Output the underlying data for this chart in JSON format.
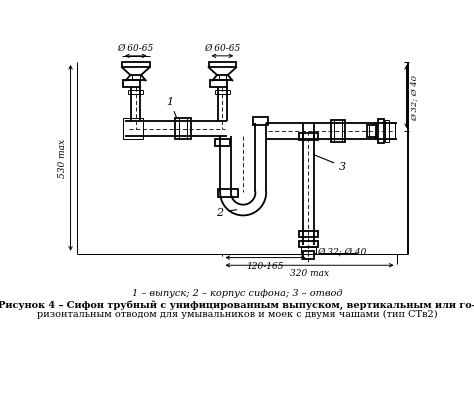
{
  "bg_color": "#ffffff",
  "line_color": "#000000",
  "caption_line1": "1 – выпуск; 2 – корпус сифона; 3 – отвод",
  "caption_line2": "Рисунок 4 – Сифон трубный с унифицированным выпуском, вертикальным или го-",
  "caption_line3": "ризонтальным отводом для умывальников и моек с двумя чашами (тип СТв2)"
}
